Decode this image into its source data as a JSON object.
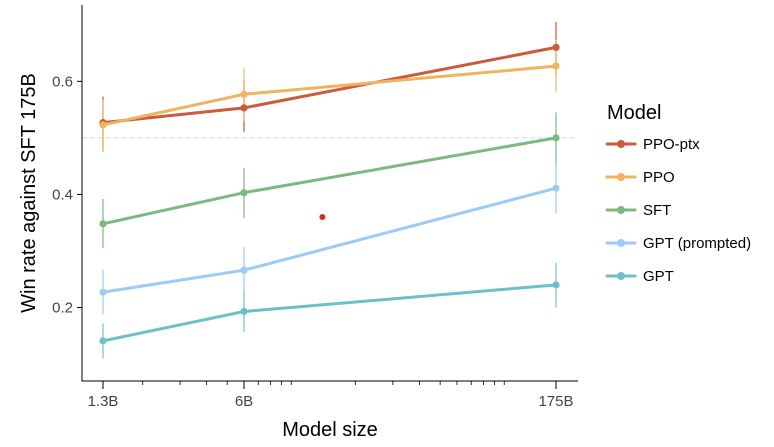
{
  "chart_data": {
    "type": "line",
    "xscale": "log",
    "title": "",
    "xlabel": "Model size",
    "ylabel": "Win rate against SFT 175B",
    "x": [
      1.3,
      6,
      175
    ],
    "x_tick_labels": [
      "1.3B",
      "6B",
      "175B"
    ],
    "ylim": [
      0.07,
      0.735
    ],
    "yticks": [
      0.2,
      0.4,
      0.6
    ],
    "y_tick_labels": [
      "0.2",
      "0.4",
      "0.6"
    ],
    "reference_line": 0.5,
    "legend": {
      "title": "Model",
      "position": "right"
    },
    "series": [
      {
        "name": "PPO-ptx",
        "color": "#CC5A3C",
        "values": [
          0.527,
          0.553,
          0.66
        ],
        "err_low": [
          0.478,
          0.51,
          0.613
        ],
        "err_high": [
          0.573,
          0.6,
          0.705
        ]
      },
      {
        "name": "PPO",
        "color": "#F1B35E",
        "values": [
          0.523,
          0.577,
          0.627
        ],
        "err_low": [
          0.475,
          0.53,
          0.582
        ],
        "err_high": [
          0.567,
          0.623,
          0.673
        ]
      },
      {
        "name": "SFT",
        "color": "#7CB97E",
        "values": [
          0.348,
          0.403,
          0.5
        ],
        "err_low": [
          0.305,
          0.358,
          0.455
        ],
        "err_high": [
          0.392,
          0.447,
          0.545
        ]
      },
      {
        "name": "GPT (prompted)",
        "color": "#9DCBF5",
        "values": [
          0.227,
          0.266,
          0.411
        ],
        "err_low": [
          0.188,
          0.225,
          0.367
        ],
        "err_high": [
          0.267,
          0.307,
          0.456
        ]
      },
      {
        "name": "GPT",
        "color": "#6EC0C8",
        "values": [
          0.141,
          0.193,
          0.24
        ],
        "err_low": [
          0.11,
          0.157,
          0.2
        ],
        "err_high": [
          0.172,
          0.229,
          0.279
        ]
      }
    ],
    "annotations": [
      {
        "type": "dot",
        "x": 14,
        "y": 0.36,
        "color": "#E0242A"
      }
    ]
  }
}
